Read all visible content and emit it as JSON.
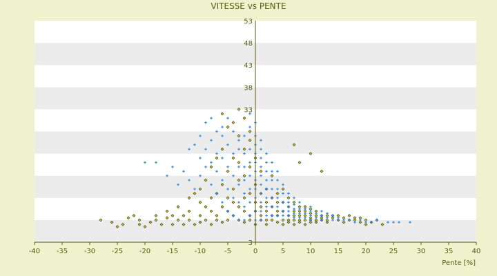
{
  "chart_data": {
    "type": "scatter",
    "title": "VITESSE vs PENTE",
    "xlabel": "Pente [%]",
    "ylabel": "",
    "xlim": [
      -40,
      40
    ],
    "ylim": [
      3,
      53
    ],
    "x_ticks": [
      -40,
      -35,
      -30,
      -25,
      -20,
      -15,
      -10,
      -5,
      0,
      5,
      10,
      15,
      20,
      25,
      30,
      35,
      40
    ],
    "y_ticks": [
      3,
      8,
      13,
      18,
      23,
      28,
      33,
      38,
      43,
      48,
      53
    ],
    "y_tick_labels_visible": [
      "3",
      "",
      "",
      "",
      "",
      "",
      "33",
      "38",
      "43",
      "48",
      "53"
    ],
    "grid": "horizontal alternating bands",
    "series": [
      {
        "marker": "diamond",
        "color": "#c8c800",
        "edge_color": "#333333",
        "points": [
          [
            -28,
            8
          ],
          [
            -26,
            7.5
          ],
          [
            -25,
            6.5
          ],
          [
            -24,
            7
          ],
          [
            -23,
            8.5
          ],
          [
            -22,
            9
          ],
          [
            -21,
            8
          ],
          [
            -21,
            7
          ],
          [
            -20,
            6.5
          ],
          [
            -19,
            7.5
          ],
          [
            -18,
            8
          ],
          [
            -18,
            9
          ],
          [
            -17,
            7
          ],
          [
            -16,
            8.5
          ],
          [
            -16,
            10
          ],
          [
            -15,
            9
          ],
          [
            -15,
            7
          ],
          [
            -14,
            8
          ],
          [
            -14,
            11
          ],
          [
            -13,
            9
          ],
          [
            -13,
            7
          ],
          [
            -12,
            10
          ],
          [
            -12,
            13
          ],
          [
            -12,
            8
          ],
          [
            -11,
            14
          ],
          [
            -11,
            7
          ],
          [
            -10,
            9
          ],
          [
            -10,
            12
          ],
          [
            -10,
            15
          ],
          [
            -10,
            7.5
          ],
          [
            -9,
            8
          ],
          [
            -9,
            11
          ],
          [
            -9,
            17
          ],
          [
            -8,
            10
          ],
          [
            -8,
            13
          ],
          [
            -8,
            20
          ],
          [
            -8,
            7
          ],
          [
            -7,
            9
          ],
          [
            -7,
            14
          ],
          [
            -7,
            22
          ],
          [
            -7,
            8
          ],
          [
            -6,
            11
          ],
          [
            -6,
            16
          ],
          [
            -6,
            24
          ],
          [
            -6,
            7.5
          ],
          [
            -5,
            10
          ],
          [
            -5,
            13
          ],
          [
            -5,
            19
          ],
          [
            -5,
            29
          ],
          [
            -5,
            8
          ],
          [
            -4,
            12
          ],
          [
            -4,
            15
          ],
          [
            -4,
            22
          ],
          [
            -4,
            30
          ],
          [
            -4,
            9
          ],
          [
            -3,
            11
          ],
          [
            -3,
            17
          ],
          [
            -3,
            21
          ],
          [
            -3,
            27
          ],
          [
            -3,
            8
          ],
          [
            -2,
            10
          ],
          [
            -2,
            13
          ],
          [
            -2,
            18
          ],
          [
            -2,
            24
          ],
          [
            -2,
            7.5
          ],
          [
            -1,
            9
          ],
          [
            -1,
            14
          ],
          [
            -1,
            20
          ],
          [
            -1,
            26
          ],
          [
            -1,
            8
          ],
          [
            0,
            10
          ],
          [
            0,
            12
          ],
          [
            0,
            16
          ],
          [
            0,
            22
          ],
          [
            0,
            7
          ],
          [
            1,
            9
          ],
          [
            1,
            11
          ],
          [
            1,
            14
          ],
          [
            1,
            19
          ],
          [
            1,
            8
          ],
          [
            2,
            8
          ],
          [
            2,
            12
          ],
          [
            2,
            15
          ],
          [
            2,
            10
          ],
          [
            2,
            7
          ],
          [
            3,
            9
          ],
          [
            3,
            11
          ],
          [
            3,
            13
          ],
          [
            3,
            8
          ],
          [
            3,
            18
          ],
          [
            4,
            7.5
          ],
          [
            4,
            10
          ],
          [
            4,
            12
          ],
          [
            4,
            14
          ],
          [
            4,
            9
          ],
          [
            5,
            8
          ],
          [
            5,
            10
          ],
          [
            5,
            12
          ],
          [
            5,
            7
          ],
          [
            5,
            15
          ],
          [
            6,
            9
          ],
          [
            6,
            11
          ],
          [
            6,
            8
          ],
          [
            6,
            13
          ],
          [
            6,
            7.5
          ],
          [
            7,
            10
          ],
          [
            7,
            8
          ],
          [
            7,
            12
          ],
          [
            7,
            9
          ],
          [
            7,
            7
          ],
          [
            8,
            9
          ],
          [
            8,
            11
          ],
          [
            8,
            8
          ],
          [
            8,
            7.5
          ],
          [
            8,
            10
          ],
          [
            9,
            8
          ],
          [
            9,
            10
          ],
          [
            9,
            9
          ],
          [
            9,
            7
          ],
          [
            9,
            11
          ],
          [
            10,
            8.5
          ],
          [
            10,
            9.5
          ],
          [
            10,
            8
          ],
          [
            10,
            7.5
          ],
          [
            10,
            10.5
          ],
          [
            11,
            8
          ],
          [
            11,
            9
          ],
          [
            11,
            10
          ],
          [
            11,
            7.5
          ],
          [
            12,
            8.5
          ],
          [
            12,
            9
          ],
          [
            12,
            8
          ],
          [
            13,
            8
          ],
          [
            13,
            9
          ],
          [
            13,
            7.5
          ],
          [
            14,
            8.5
          ],
          [
            14,
            9
          ],
          [
            15,
            8
          ],
          [
            15,
            9
          ],
          [
            16,
            8.5
          ],
          [
            16,
            7.5
          ],
          [
            17,
            8
          ],
          [
            17,
            9
          ],
          [
            18,
            8
          ],
          [
            18,
            8.5
          ],
          [
            19,
            7.5
          ],
          [
            19,
            8.5
          ],
          [
            20,
            8
          ],
          [
            20,
            7
          ],
          [
            21,
            7.5
          ],
          [
            22,
            8
          ],
          [
            23,
            7
          ],
          [
            10,
            23
          ],
          [
            8,
            21
          ],
          [
            12,
            19
          ],
          [
            7,
            25
          ],
          [
            -2,
            31
          ],
          [
            -3,
            33
          ],
          [
            -6,
            32
          ],
          [
            -1,
            28
          ]
        ]
      },
      {
        "marker": "plus",
        "color": "#3a8fd8",
        "points": [
          [
            -20,
            21
          ],
          [
            -18,
            21
          ],
          [
            -16,
            18
          ],
          [
            -15,
            20
          ],
          [
            -14,
            16
          ],
          [
            -13,
            19
          ],
          [
            -12,
            17
          ],
          [
            -12,
            24
          ],
          [
            -11,
            25
          ],
          [
            -11,
            15
          ],
          [
            -10,
            22
          ],
          [
            -10,
            27
          ],
          [
            -10,
            18
          ],
          [
            -9,
            20
          ],
          [
            -9,
            24
          ],
          [
            -9,
            30
          ],
          [
            -8,
            16
          ],
          [
            -8,
            21
          ],
          [
            -8,
            26
          ],
          [
            -8,
            31
          ],
          [
            -7,
            14
          ],
          [
            -7,
            19
          ],
          [
            -7,
            23
          ],
          [
            -7,
            28
          ],
          [
            -6,
            12
          ],
          [
            -6,
            17
          ],
          [
            -6,
            22
          ],
          [
            -6,
            27
          ],
          [
            -6,
            29
          ],
          [
            -5,
            10
          ],
          [
            -5,
            15
          ],
          [
            -5,
            20
          ],
          [
            -5,
            25
          ],
          [
            -5,
            31
          ],
          [
            -4,
            9
          ],
          [
            -4,
            13
          ],
          [
            -4,
            18
          ],
          [
            -4,
            23
          ],
          [
            -4,
            28
          ],
          [
            -3,
            8
          ],
          [
            -3,
            12
          ],
          [
            -3,
            16
          ],
          [
            -3,
            20
          ],
          [
            -3,
            24
          ],
          [
            -3,
            26
          ],
          [
            -2,
            8
          ],
          [
            -2,
            11
          ],
          [
            -2,
            14
          ],
          [
            -2,
            17
          ],
          [
            -2,
            20
          ],
          [
            -2,
            23
          ],
          [
            -2,
            27
          ],
          [
            -1,
            9
          ],
          [
            -1,
            12
          ],
          [
            -1,
            15
          ],
          [
            -1,
            18
          ],
          [
            -1,
            21
          ],
          [
            -1,
            24
          ],
          [
            -1,
            29
          ],
          [
            0,
            8
          ],
          [
            0,
            10
          ],
          [
            0,
            13
          ],
          [
            0,
            15
          ],
          [
            0,
            17
          ],
          [
            0,
            19
          ],
          [
            0,
            21
          ],
          [
            0,
            23
          ],
          [
            0,
            25
          ],
          [
            0,
            27
          ],
          [
            0,
            30
          ],
          [
            1,
            8
          ],
          [
            1,
            10
          ],
          [
            1,
            12
          ],
          [
            1,
            14
          ],
          [
            1,
            16
          ],
          [
            1,
            18
          ],
          [
            1,
            20
          ],
          [
            1,
            22
          ],
          [
            1,
            24
          ],
          [
            1,
            26
          ],
          [
            2,
            9
          ],
          [
            2,
            11
          ],
          [
            2,
            13
          ],
          [
            2,
            15
          ],
          [
            2,
            17
          ],
          [
            2,
            19
          ],
          [
            2,
            21
          ],
          [
            2,
            23
          ],
          [
            3,
            9
          ],
          [
            3,
            11
          ],
          [
            3,
            13
          ],
          [
            3,
            15
          ],
          [
            3,
            17
          ],
          [
            3,
            19
          ],
          [
            3,
            21
          ],
          [
            4,
            9
          ],
          [
            4,
            11
          ],
          [
            4,
            13
          ],
          [
            4,
            15
          ],
          [
            4,
            17
          ],
          [
            4,
            19
          ],
          [
            5,
            9
          ],
          [
            5,
            10
          ],
          [
            5,
            12
          ],
          [
            5,
            14
          ],
          [
            5,
            16
          ],
          [
            6,
            9
          ],
          [
            6,
            10
          ],
          [
            6,
            11
          ],
          [
            6,
            12
          ],
          [
            6,
            14
          ],
          [
            7,
            8.5
          ],
          [
            7,
            9.5
          ],
          [
            7,
            10.5
          ],
          [
            7,
            11.5
          ],
          [
            7,
            13
          ],
          [
            8,
            8.5
          ],
          [
            8,
            9.5
          ],
          [
            8,
            10.5
          ],
          [
            8,
            12
          ],
          [
            9,
            8.5
          ],
          [
            9,
            9.5
          ],
          [
            9,
            10.5
          ],
          [
            10,
            8
          ],
          [
            10,
            9
          ],
          [
            10,
            10
          ],
          [
            10,
            11
          ],
          [
            11,
            8.5
          ],
          [
            11,
            9.5
          ],
          [
            12,
            8
          ],
          [
            12,
            9
          ],
          [
            12,
            10
          ],
          [
            13,
            8.5
          ],
          [
            13,
            9.5
          ],
          [
            14,
            8
          ],
          [
            14,
            9
          ],
          [
            15,
            8
          ],
          [
            15,
            8.5
          ],
          [
            16,
            8
          ],
          [
            17,
            8
          ],
          [
            18,
            7.5
          ],
          [
            19,
            8
          ],
          [
            20,
            7.5
          ],
          [
            21,
            7.5
          ],
          [
            22,
            8
          ],
          [
            24,
            7.5
          ],
          [
            25,
            7.5
          ],
          [
            26,
            7.5
          ],
          [
            28,
            7.5
          ],
          [
            -1,
            32
          ]
        ]
      }
    ]
  }
}
